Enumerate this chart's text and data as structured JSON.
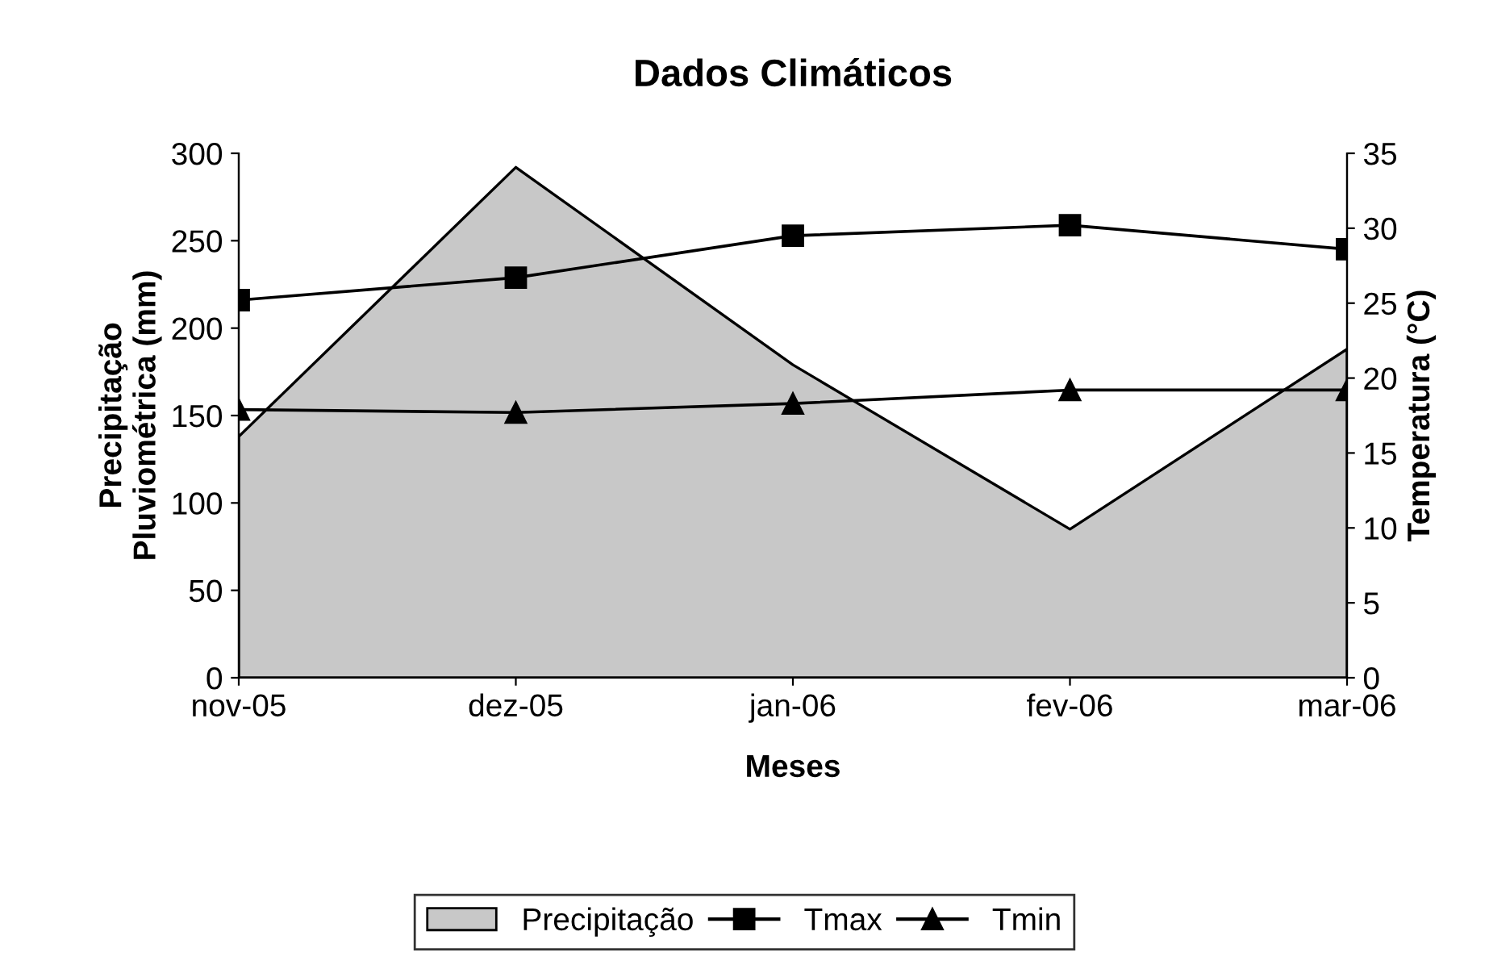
{
  "chart_data": {
    "type": "line",
    "title": "Dados Climáticos",
    "xlabel": "Meses",
    "ylabel": "Precipitação\nPluviométrica (mm)",
    "y2label": "Temperatura (°C)",
    "categories": [
      "nov-05",
      "dez-05",
      "jan-06",
      "fev-06",
      "mar-06"
    ],
    "series": [
      {
        "name": "Precipitação",
        "type": "area",
        "color": "#c8c8c8",
        "values": [
          138,
          292,
          179,
          85,
          188
        ]
      },
      {
        "name": "Tmax",
        "axis": "y2",
        "marker": "square",
        "color": "#000000",
        "values": [
          25.2,
          26.7,
          29.5,
          30.2,
          28.6
        ]
      },
      {
        "name": "Tmin",
        "axis": "y2",
        "marker": "triangle",
        "color": "#000000",
        "values": [
          17.9,
          17.7,
          18.3,
          19.2,
          19.2
        ]
      }
    ],
    "ylim": [
      0,
      300
    ],
    "yticks": [
      0,
      50,
      100,
      150,
      200,
      250,
      300
    ],
    "y2lim": [
      0,
      35
    ],
    "y2ticks": [
      0,
      5,
      10,
      15,
      20,
      25,
      30,
      35
    ],
    "grid": false,
    "legend": "bottom"
  }
}
